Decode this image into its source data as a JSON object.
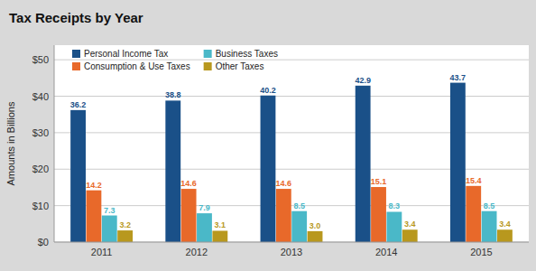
{
  "chart_data": {
    "type": "bar",
    "title": "Tax Receipts by Year",
    "categories": [
      "2011",
      "2012",
      "2013",
      "2014",
      "2015"
    ],
    "series": [
      {
        "name": "Personal Income Tax",
        "color": "#1a5088",
        "values": [
          36.2,
          38.8,
          40.2,
          42.9,
          43.7
        ]
      },
      {
        "name": "Consumption & Use Taxes",
        "color": "#e8692a",
        "values": [
          14.2,
          14.6,
          14.6,
          15.1,
          15.4
        ]
      },
      {
        "name": "Business Taxes",
        "color": "#4ab8c8",
        "values": [
          7.3,
          7.9,
          8.5,
          8.3,
          8.5
        ]
      },
      {
        "name": "Other Taxes",
        "color": "#b8981e",
        "values": [
          3.2,
          3.1,
          3.0,
          3.4,
          3.4
        ],
        "value_labels": [
          "3.2",
          "3.1",
          "3.0",
          "3.4",
          "3.4"
        ]
      }
    ],
    "ylabel": "Amounts in Billions",
    "ylim": [
      0,
      54
    ],
    "yticks": [
      {
        "value": 0,
        "label": "$0"
      },
      {
        "value": 10,
        "label": "$10"
      },
      {
        "value": 20,
        "label": "$20"
      },
      {
        "value": 30,
        "label": "$30"
      },
      {
        "value": 40,
        "label": "$40"
      },
      {
        "value": 50,
        "label": "$50"
      }
    ],
    "grid": true,
    "legend": "top-left",
    "data_labels": true
  }
}
